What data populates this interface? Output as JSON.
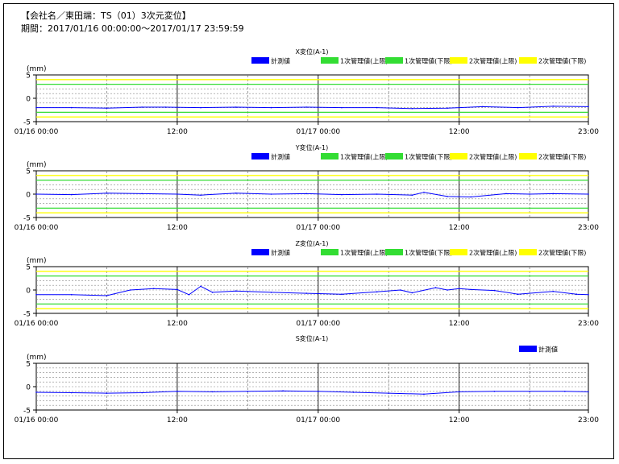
{
  "header": {
    "title": "【会社名／東田端：TS（01）3次元変位】",
    "period": "期間：2017/01/16 00:00:00～2017/01/17 23:59:59"
  },
  "legend_colors": {
    "measured": "#0000ff",
    "level1": "#33dd33",
    "level2": "#ffff00"
  },
  "chart_data": [
    {
      "type": "line",
      "title": "X変位(A-1)",
      "ylabel": "(mm)",
      "ylim": [
        -5,
        5
      ],
      "yticks": [
        "5",
        "0",
        "-5"
      ],
      "xtick_labels": [
        "01/16 00:00",
        "12:00",
        "01/17 00:00",
        "12:00",
        "23:00"
      ],
      "legend": [
        "計測値",
        "1次管理値(上限)",
        "1次管理値(下限)",
        "2次管理値(上限)",
        "2次管理値(下限)"
      ],
      "thresholds": {
        "level1_upper": 3,
        "level1_lower": -3,
        "level2_upper": 4,
        "level2_lower": -4
      },
      "series": [
        {
          "name": "計測値",
          "x_hours": [
            0,
            3,
            6,
            9,
            11,
            14,
            17,
            20,
            23,
            26,
            29,
            32,
            35,
            38,
            41,
            44,
            47
          ],
          "values": [
            -2.0,
            -2.0,
            -2.1,
            -1.9,
            -1.9,
            -2.0,
            -1.9,
            -2.0,
            -1.9,
            -2.0,
            -2.0,
            -2.2,
            -2.1,
            -1.8,
            -2.0,
            -1.7,
            -1.8
          ]
        }
      ]
    },
    {
      "type": "line",
      "title": "Y変位(A-1)",
      "ylabel": "(mm)",
      "ylim": [
        -5,
        5
      ],
      "yticks": [
        "5",
        "0",
        "-5"
      ],
      "xtick_labels": [
        "01/16 00:00",
        "12:00",
        "01/17 00:00",
        "12:00",
        "23:00"
      ],
      "legend": [
        "計測値",
        "1次管理値(上限)",
        "1次管理値(下限)",
        "2次管理値(上限)",
        "2次管理値(下限)"
      ],
      "thresholds": {
        "level1_upper": 3,
        "level1_lower": -3,
        "level2_upper": 4,
        "level2_lower": -4
      },
      "series": [
        {
          "name": "計測値",
          "x_hours": [
            0,
            3,
            6,
            9,
            12,
            14,
            17,
            20,
            23,
            26,
            29,
            32,
            33,
            35,
            37,
            40,
            42,
            44,
            47
          ],
          "values": [
            0.0,
            -0.1,
            0.2,
            0.1,
            0.0,
            -0.2,
            0.2,
            0.0,
            0.1,
            -0.1,
            0.0,
            -0.2,
            0.4,
            -0.5,
            -0.6,
            0.1,
            0.0,
            0.1,
            0.0
          ]
        }
      ]
    },
    {
      "type": "line",
      "title": "Z変位(A-1)",
      "ylabel": "(mm)",
      "ylim": [
        -5,
        5
      ],
      "yticks": [
        "5",
        "0",
        "-5"
      ],
      "xtick_labels": [
        "01/16 00:00",
        "12:00",
        "01/17 00:00",
        "12:00",
        "23:00"
      ],
      "legend": [
        "計測値",
        "1次管理値(上限)",
        "1次管理値(下限)",
        "2次管理値(上限)",
        "2次管理値(下限)"
      ],
      "thresholds": {
        "level1_upper": 3,
        "level1_lower": -3,
        "level2_upper": 4,
        "level2_lower": -4
      },
      "series": [
        {
          "name": "計測値",
          "x_hours": [
            0,
            3,
            6,
            8,
            10,
            12,
            13,
            14,
            15,
            17,
            20,
            23,
            26,
            29,
            31,
            32,
            34,
            35,
            36,
            37,
            39,
            41,
            44,
            46,
            47
          ],
          "values": [
            -1.0,
            -1.0,
            -1.2,
            0.0,
            0.3,
            0.1,
            -1.0,
            0.8,
            -0.5,
            -0.2,
            -0.5,
            -0.7,
            -0.9,
            -0.4,
            0.0,
            -0.6,
            0.5,
            0.0,
            0.3,
            0.1,
            -0.1,
            -0.9,
            -0.3,
            -0.9,
            -1.0
          ]
        }
      ]
    },
    {
      "type": "line",
      "title": "S変位(A-1)",
      "ylabel": "(mm)",
      "ylim": [
        -5,
        5
      ],
      "yticks": [
        "5",
        "0",
        "-5"
      ],
      "xtick_labels": [
        "01/16 00:00",
        "12:00",
        "01/17 00:00",
        "12:00",
        "23:00"
      ],
      "legend": [
        "計測値"
      ],
      "thresholds": null,
      "series": [
        {
          "name": "計測値",
          "x_hours": [
            0,
            3,
            6,
            9,
            12,
            15,
            18,
            21,
            24,
            27,
            30,
            33,
            36,
            39,
            42,
            45,
            47
          ],
          "values": [
            -1.2,
            -1.3,
            -1.4,
            -1.3,
            -1.0,
            -1.1,
            -1.0,
            -0.9,
            -1.0,
            -1.2,
            -1.4,
            -1.6,
            -1.1,
            -1.0,
            -1.0,
            -1.0,
            -1.1
          ]
        }
      ]
    }
  ]
}
